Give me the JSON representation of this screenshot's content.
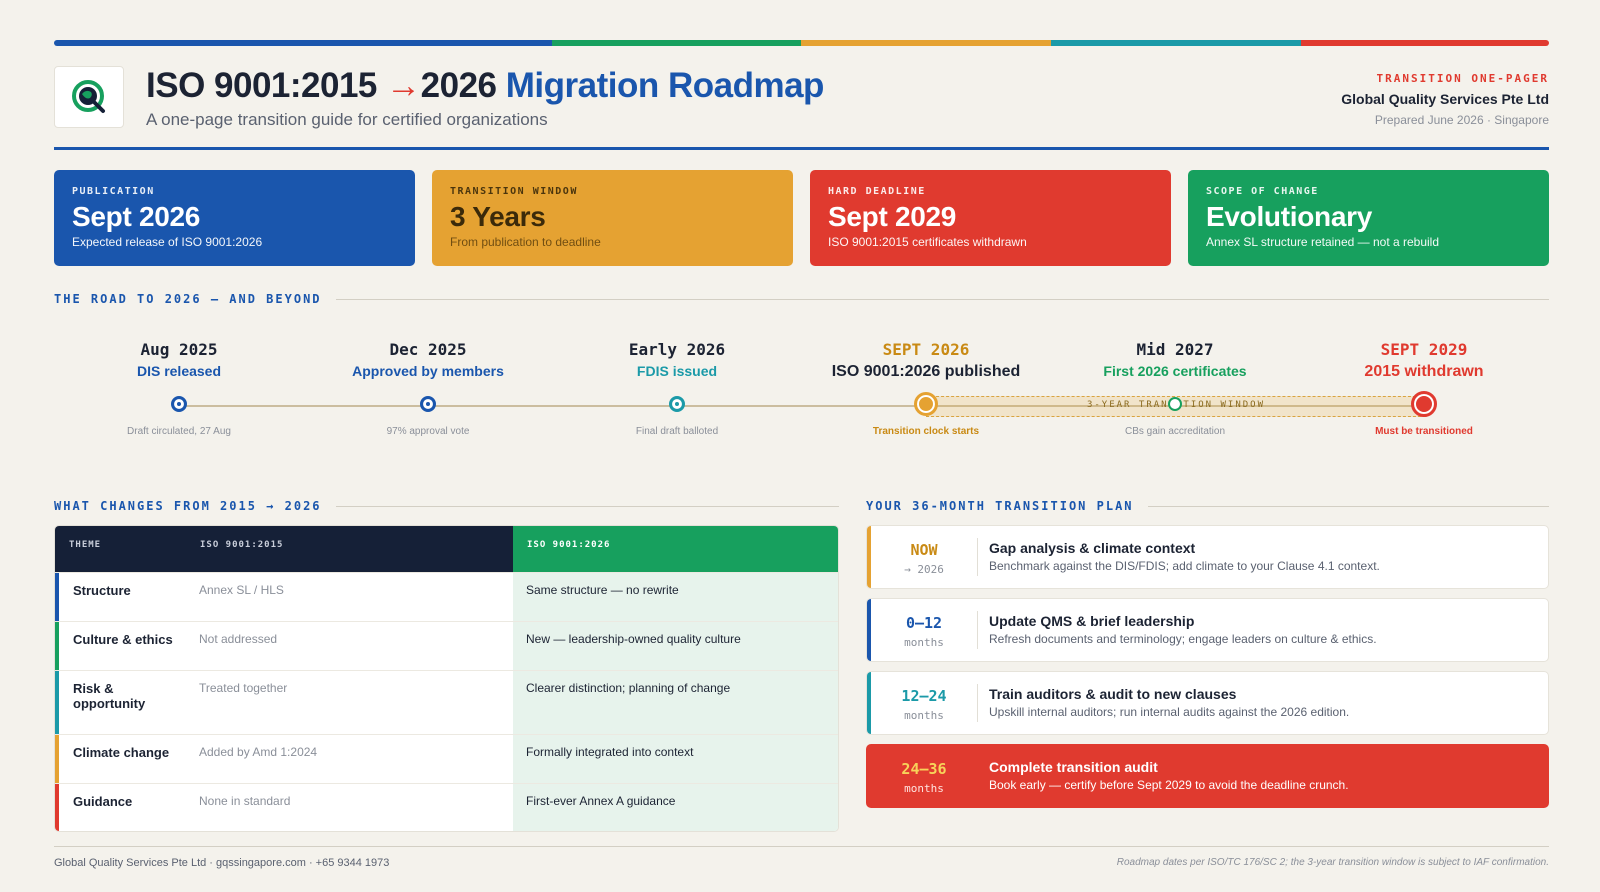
{
  "colors": {
    "blue": "#1a56ad",
    "green": "#17a05e",
    "yellow": "#e5a232",
    "teal": "#1b9aa8",
    "red": "#e03a2f",
    "navy": "#152037"
  },
  "header": {
    "title_a": "ISO 9001:2015",
    "title_arrow": "→",
    "title_b": "2026",
    "title_accent": "Migration Roadmap",
    "subtitle": "A one-page transition guide for certified organizations",
    "kicker": "TRANSITION ONE-PAGER",
    "org": "Global Quality Services Pte Ltd",
    "prepared": "Prepared June 2026 · Singapore",
    "logo_icon": "globe-q-icon"
  },
  "stats": [
    {
      "key": "PUBLICATION",
      "value": "Sept 2026",
      "desc": "Expected release of ISO 9001:2026",
      "color": "#1a56ad"
    },
    {
      "key": "TRANSITION WINDOW",
      "value": "3 Years",
      "desc": "From publication to deadline",
      "color": "#e5a232"
    },
    {
      "key": "HARD DEADLINE",
      "value": "Sept 2029",
      "desc": "ISO 9001:2015 certificates withdrawn",
      "color": "#e03a2f"
    },
    {
      "key": "SCOPE OF CHANGE",
      "value": "Evolutionary",
      "desc": "Annex SL structure retained — not a rebuild",
      "color": "#17a05e"
    }
  ],
  "timeline": {
    "label": "THE ROAD TO 2026 — AND BEYOND",
    "window_label": "3-YEAR TRANSITION WINDOW",
    "milestones": [
      {
        "date": "Aug 2025",
        "name": "DIS released",
        "note": "Draft circulated, 27 Aug",
        "color": "#1a56ad"
      },
      {
        "date": "Dec 2025",
        "name": "Approved by members",
        "note": "97% approval vote",
        "color": "#1a56ad"
      },
      {
        "date": "Early 2026",
        "name": "FDIS issued",
        "note": "Final draft balloted",
        "color": "#1b9aa8"
      },
      {
        "date": "SEPT 2026",
        "name": "ISO 9001:2026 published",
        "note": "Transition clock starts",
        "color": "#e5a232"
      },
      {
        "date": "Mid 2027",
        "name": "First 2026 certificates",
        "note": "CBs gain accreditation",
        "color": "#17a05e"
      },
      {
        "date": "SEPT 2029",
        "name": "2015 withdrawn",
        "note": "Must be transitioned",
        "color": "#e03a2f"
      }
    ]
  },
  "changes": {
    "label": "WHAT CHANGES FROM 2015 → 2026",
    "headers": [
      "THEME",
      "ISO 9001:2015",
      "ISO 9001:2026"
    ],
    "rows": [
      {
        "theme": "Structure",
        "old": "Annex SL / HLS",
        "new": "Same structure — no rewrite",
        "color": "#1a56ad"
      },
      {
        "theme": "Culture & ethics",
        "old": "Not addressed",
        "new": "New — leadership-owned quality culture",
        "color": "#17a05e"
      },
      {
        "theme": "Risk & opportunity",
        "old": "Treated together",
        "new": "Clearer distinction; planning of change",
        "color": "#1b9aa8"
      },
      {
        "theme": "Climate change",
        "old": "Added by Amd 1:2024",
        "new": "Formally integrated into context",
        "color": "#e5a232"
      },
      {
        "theme": "Guidance",
        "old": "None in standard",
        "new": "First-ever Annex A guidance",
        "color": "#e03a2f"
      }
    ]
  },
  "plan": {
    "label": "YOUR 36-MONTH TRANSITION PLAN",
    "steps": [
      {
        "when_a": "NOW",
        "when_b": "→ 2026",
        "title": "Gap analysis & climate context",
        "desc": "Benchmark against the DIS/FDIS; add climate to your Clause 4.1 context.",
        "color": "#e5a232"
      },
      {
        "when_a": "0–12",
        "when_b": "months",
        "title": "Update QMS & brief leadership",
        "desc": "Refresh documents and terminology; engage leaders on culture & ethics.",
        "color": "#1a56ad"
      },
      {
        "when_a": "12–24",
        "when_b": "months",
        "title": "Train auditors & audit to new clauses",
        "desc": "Upskill internal auditors; run internal audits against the 2026 edition.",
        "color": "#1b9aa8"
      },
      {
        "when_a": "24–36",
        "when_b": "months",
        "title": "Complete transition audit",
        "desc": "Book early — certify before Sept 2029 to avoid the deadline crunch.",
        "color": "#e03a2f"
      }
    ]
  },
  "footer": {
    "left": "Global Quality Services Pte Ltd · gqssingapore.com · +65 9344 1973",
    "right": "Roadmap dates per ISO/TC 176/SC 2; the 3-year transition window is subject to IAF confirmation."
  }
}
